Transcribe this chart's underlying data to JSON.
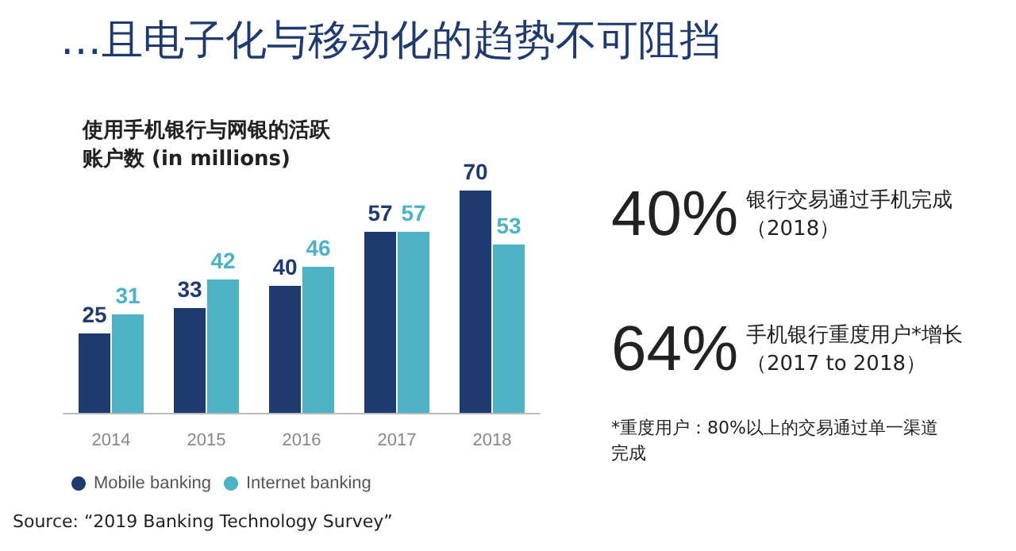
{
  "chart_data": {
    "type": "bar",
    "title": "…且电子化与移动化的趋势不可阻挡",
    "subtitle": "使用手机银行与网银的活跃账户数 (in millions)",
    "categories": [
      "2014",
      "2015",
      "2016",
      "2017",
      "2018"
    ],
    "series": [
      {
        "name": "Mobile banking",
        "color": "#1f3a6e",
        "values": [
          25,
          33,
          40,
          57,
          70
        ]
      },
      {
        "name": "Internet banking",
        "color": "#4db3c4",
        "values": [
          31,
          42,
          46,
          57,
          53
        ]
      }
    ],
    "data_labels": true,
    "legend": "bottom left",
    "annotations": [
      "40%",
      "银行交易通过手机完成（2018）",
      "64%",
      "手机银行重度用户*增长（2017 to 2018）",
      "*重度用户：80%以上的交易通过单一渠道完成",
      "Source: “2019 Banking Technology Survey”"
    ]
  }
}
